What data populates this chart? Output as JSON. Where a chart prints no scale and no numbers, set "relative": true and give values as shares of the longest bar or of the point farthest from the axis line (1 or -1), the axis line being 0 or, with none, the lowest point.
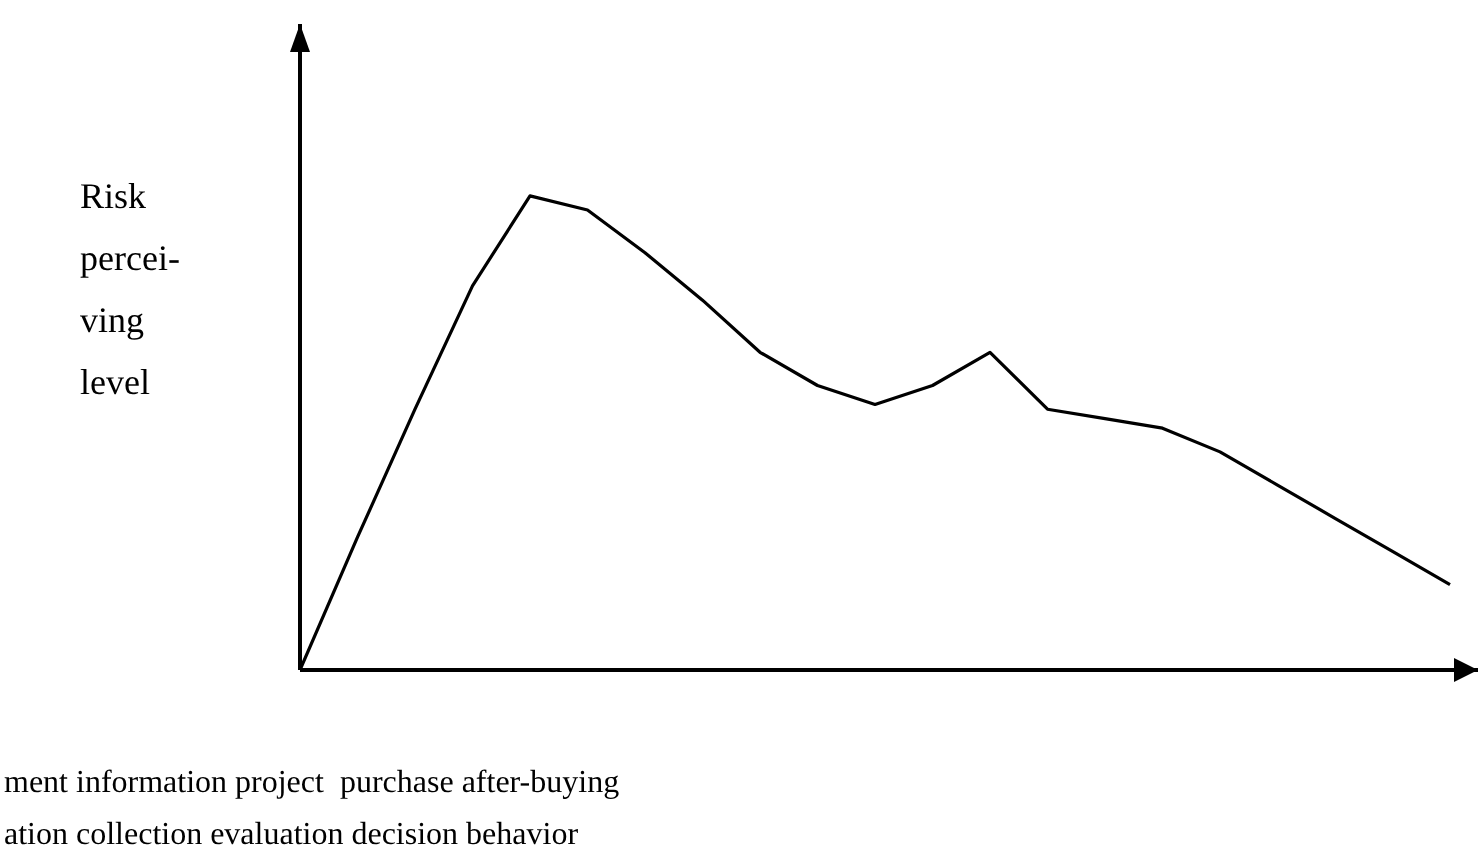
{
  "chart_data": {
    "type": "line",
    "relative": true,
    "ylabel": "Risk percei- ving level",
    "categories": [
      null,
      null,
      null,
      null,
      null,
      null,
      null,
      null,
      null,
      null,
      null,
      null,
      null,
      null,
      null,
      null,
      null,
      null,
      null,
      null,
      null
    ],
    "series": [
      {
        "color": "#000000",
        "values": [
          0,
          0.28,
          0.55,
          0.81,
          1.0,
          0.97,
          0.88,
          0.78,
          0.67,
          0.6,
          0.56,
          0.6,
          0.67,
          0.55,
          0.53,
          0.51,
          0.46,
          0.39,
          0.32,
          0.25,
          0.18
        ]
      }
    ],
    "marker": "none",
    "line_style": "solid",
    "grid": false,
    "legend": false,
    "annotations": [
      "ment information project  purchase after-buying",
      "ation collection evaluation decision behavior"
    ]
  }
}
